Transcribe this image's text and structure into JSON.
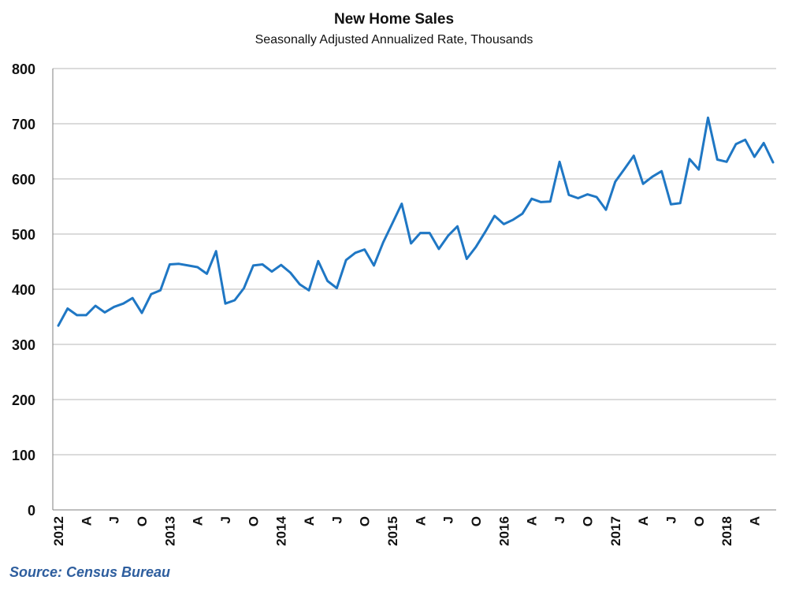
{
  "chart_data": {
    "type": "line",
    "title": "New Home Sales",
    "subtitle": "Seasonally Adjusted Annualized Rate, Thousands",
    "source": "Source: Census Bureau",
    "ylim": [
      0,
      800
    ],
    "yticks": [
      0,
      100,
      200,
      300,
      400,
      500,
      600,
      700,
      800
    ],
    "grid": true,
    "line_color": "#1f77c4",
    "x_start": "2012-01",
    "x_end": "2018-06",
    "xticks": [
      {
        "date": "2012-01",
        "label": "2012"
      },
      {
        "date": "2012-04",
        "label": "A"
      },
      {
        "date": "2012-07",
        "label": "J"
      },
      {
        "date": "2012-10",
        "label": "O"
      },
      {
        "date": "2013-01",
        "label": "2013"
      },
      {
        "date": "2013-04",
        "label": "A"
      },
      {
        "date": "2013-07",
        "label": "J"
      },
      {
        "date": "2013-10",
        "label": "O"
      },
      {
        "date": "2014-01",
        "label": "2014"
      },
      {
        "date": "2014-04",
        "label": "A"
      },
      {
        "date": "2014-07",
        "label": "J"
      },
      {
        "date": "2014-10",
        "label": "O"
      },
      {
        "date": "2015-01",
        "label": "2015"
      },
      {
        "date": "2015-04",
        "label": "A"
      },
      {
        "date": "2015-07",
        "label": "J"
      },
      {
        "date": "2015-10",
        "label": "O"
      },
      {
        "date": "2016-01",
        "label": "2016"
      },
      {
        "date": "2016-04",
        "label": "A"
      },
      {
        "date": "2016-07",
        "label": "J"
      },
      {
        "date": "2016-10",
        "label": "O"
      },
      {
        "date": "2017-01",
        "label": "2017"
      },
      {
        "date": "2017-04",
        "label": "A"
      },
      {
        "date": "2017-07",
        "label": "J"
      },
      {
        "date": "2017-10",
        "label": "O"
      },
      {
        "date": "2018-01",
        "label": "2018"
      },
      {
        "date": "2018-04",
        "label": "A"
      }
    ],
    "series": [
      {
        "x": [
          "2012-01",
          "2012-02",
          "2012-03",
          "2012-04",
          "2012-05",
          "2012-06",
          "2012-07",
          "2012-08",
          "2012-09",
          "2012-10",
          "2012-11",
          "2012-12",
          "2013-01",
          "2013-02",
          "2013-03",
          "2013-04",
          "2013-05",
          "2013-06",
          "2013-07",
          "2013-08",
          "2013-09",
          "2013-10",
          "2013-11",
          "2013-12",
          "2014-01",
          "2014-02",
          "2014-03",
          "2014-04",
          "2014-05",
          "2014-06",
          "2014-07",
          "2014-08",
          "2014-09",
          "2014-10",
          "2014-11",
          "2014-12",
          "2015-01",
          "2015-02",
          "2015-03",
          "2015-04",
          "2015-05",
          "2015-06",
          "2015-07",
          "2015-08",
          "2015-09",
          "2015-10",
          "2015-11",
          "2015-12",
          "2016-01",
          "2016-02",
          "2016-03",
          "2016-04",
          "2016-05",
          "2016-06",
          "2016-07",
          "2016-08",
          "2016-09",
          "2016-10",
          "2016-11",
          "2016-12",
          "2017-01",
          "2017-02",
          "2017-03",
          "2017-04",
          "2017-05",
          "2017-06",
          "2017-07",
          "2017-08",
          "2017-09",
          "2017-10",
          "2017-11",
          "2017-12",
          "2018-01",
          "2018-02",
          "2018-03",
          "2018-04",
          "2018-05",
          "2018-06"
        ],
        "values": [
          334,
          365,
          353,
          353,
          370,
          358,
          368,
          374,
          384,
          357,
          391,
          398,
          445,
          446,
          443,
          440,
          428,
          469,
          374,
          380,
          402,
          443,
          445,
          432,
          444,
          430,
          409,
          398,
          451,
          415,
          402,
          453,
          466,
          472,
          443,
          485,
          520,
          555,
          483,
          502,
          502,
          473,
          497,
          514,
          455,
          477,
          504,
          533,
          518,
          526,
          537,
          564,
          558,
          559,
          631,
          571,
          565,
          572,
          567,
          544,
          595,
          618,
          642,
          591,
          604,
          614,
          554,
          556,
          636,
          617,
          711,
          635,
          631,
          663,
          671,
          640,
          665,
          630
        ]
      }
    ]
  }
}
